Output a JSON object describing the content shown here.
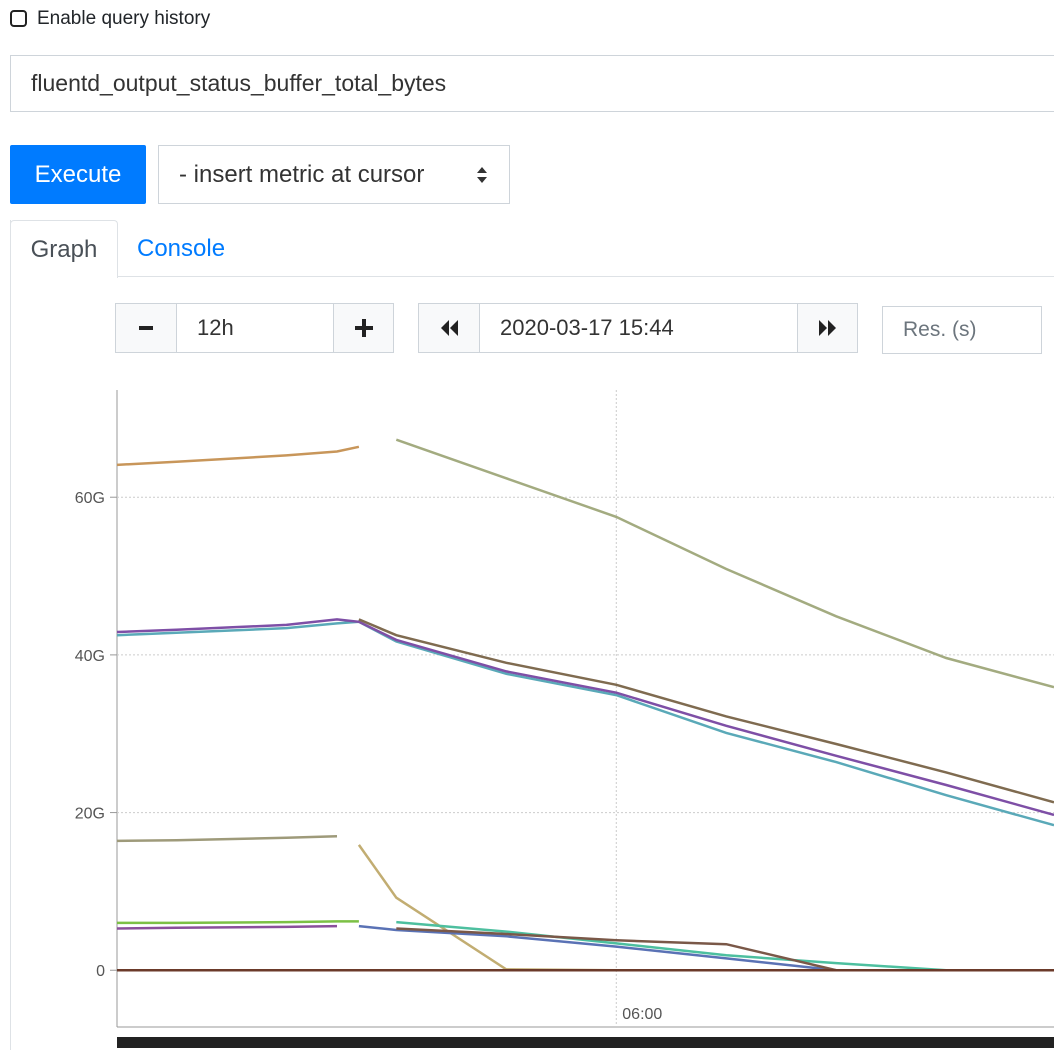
{
  "history_checkbox": "Enable query history",
  "query": "fluentd_output_status_buffer_total_bytes",
  "execute": "Execute",
  "insert_metric": "- insert metric at cursor",
  "tabs": [
    "Graph",
    "Console"
  ],
  "range": "12h",
  "end_time": "2020-03-17 15:44",
  "resolution_placeholder": "Res. (s)",
  "chart_data": {
    "type": "line",
    "x": [
      3.73,
      4.0,
      4.5,
      4.73,
      4.83,
      5.0,
      5.5,
      6.0,
      6.5,
      7.0,
      7.5,
      7.99
    ],
    "xlim": [
      3.73,
      7.99
    ],
    "xticks": [
      {
        "value": 6,
        "label": "06:00"
      }
    ],
    "ylim": [
      -7.2,
      73.6
    ],
    "yticks": [
      0,
      {
        "value": 20,
        "label": "20G"
      },
      {
        "value": 40,
        "label": "40G"
      },
      {
        "value": 60,
        "label": "60G"
      }
    ],
    "grid": true,
    "series": [
      {
        "color": "#c8965a",
        "values": [
          64.1,
          64.5,
          65.3,
          65.8,
          66.4,
          null,
          null,
          null,
          null,
          null,
          null,
          null
        ]
      },
      {
        "color": "#a3ab80",
        "values": [
          null,
          null,
          null,
          null,
          null,
          67.3,
          62.4,
          57.5,
          50.9,
          44.9,
          39.6,
          35.9
        ]
      },
      {
        "color": "#5aa9b8",
        "values": [
          42.5,
          42.8,
          43.4,
          44.0,
          44.2,
          41.7,
          37.6,
          34.9,
          30.1,
          26.4,
          22.2,
          18.4
        ]
      },
      {
        "color": "#7e4fa6",
        "values": [
          42.9,
          43.2,
          43.8,
          44.5,
          44.2,
          41.9,
          37.9,
          35.2,
          31.0,
          27.2,
          23.5,
          19.7
        ]
      },
      {
        "color": "#7f6b50",
        "values": [
          null,
          null,
          null,
          null,
          44.5,
          42.5,
          39.0,
          36.2,
          32.2,
          28.7,
          25.1,
          21.3
        ]
      },
      {
        "color": "#9e9a7a",
        "values": [
          16.4,
          16.5,
          16.8,
          17.0,
          null,
          null,
          null,
          null,
          null,
          null,
          null,
          null
        ]
      },
      {
        "color": "#c2ad72",
        "values": [
          null,
          null,
          null,
          null,
          15.9,
          9.2,
          0.1,
          0,
          null,
          null,
          null,
          null
        ]
      },
      {
        "color": "#7cc045",
        "values": [
          6.0,
          6.0,
          6.1,
          6.2,
          6.2,
          null,
          null,
          null,
          null,
          null,
          null,
          null
        ]
      },
      {
        "color": "#4dbf9f",
        "values": [
          null,
          null,
          null,
          null,
          null,
          6.1,
          4.9,
          3.4,
          1.9,
          0.9,
          0,
          0
        ]
      },
      {
        "color": "#8a4f9b",
        "values": [
          5.3,
          5.4,
          5.5,
          5.6,
          null,
          null,
          null,
          null,
          null,
          null,
          null,
          null
        ]
      },
      {
        "color": "#5a72b5",
        "values": [
          null,
          null,
          null,
          null,
          5.6,
          5.1,
          4.3,
          3.0,
          1.5,
          0,
          0,
          0
        ]
      },
      {
        "color": "#7a5848",
        "values": [
          null,
          null,
          null,
          null,
          null,
          5.3,
          4.6,
          3.8,
          3.3,
          0,
          0,
          0
        ]
      },
      {
        "color": "#5b4da0",
        "values": [
          0,
          0,
          0,
          0,
          0,
          0,
          0,
          0,
          0,
          0,
          0,
          0
        ]
      },
      {
        "color": "#6b3a2a",
        "values": [
          0,
          0,
          0,
          0,
          0,
          0,
          0,
          0,
          0,
          0,
          0,
          0
        ]
      }
    ]
  }
}
